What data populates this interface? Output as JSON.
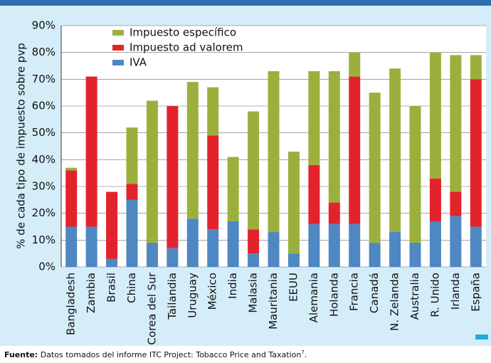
{
  "chart_data": {
    "type": "stacked_bar",
    "y_label": "% de cada tipo de impuesto sobre pvp",
    "categories": [
      "Bangladesh",
      "Zambia",
      "Brasil",
      "China",
      "Corea del Sur",
      "Tailandia",
      "Uruguay",
      "México",
      "India",
      "Malasia",
      "Mauritania",
      "EEUU",
      "Alemania",
      "Holanda",
      "Francia",
      "Canadá",
      "N. Zelanda",
      "Australia",
      "R. Unido",
      "Irlanda",
      "España"
    ],
    "series": [
      {
        "name": "Impuesto específico",
        "color": "#9bb03c",
        "values": [
          1,
          0,
          0,
          21,
          53,
          0,
          51,
          18,
          24,
          44,
          60,
          38,
          35,
          49,
          9,
          56,
          61,
          51,
          47,
          51,
          9
        ]
      },
      {
        "name": "Impuesto ad valorem",
        "color": "#e3232c",
        "values": [
          21,
          56,
          25,
          6,
          0,
          53,
          0,
          35,
          0,
          9,
          0,
          0,
          22,
          8,
          55,
          0,
          0,
          0,
          16,
          9,
          55
        ]
      },
      {
        "name": "IVA",
        "color": "#4f87c2",
        "values": [
          15,
          15,
          3,
          25,
          9,
          7,
          18,
          14,
          17,
          5,
          13,
          5,
          16,
          16,
          16,
          9,
          13,
          9,
          17,
          19,
          15
        ]
      }
    ],
    "ylim": [
      0,
      90
    ],
    "yticks": [
      {
        "value": 0,
        "label": "0%"
      },
      {
        "value": 10,
        "label": "10%"
      },
      {
        "value": 20,
        "label": "20%"
      },
      {
        "value": 30,
        "label": "30%"
      },
      {
        "value": 40,
        "label": "40%"
      },
      {
        "value": 50,
        "label": "50%"
      },
      {
        "value": 60,
        "label": "60%"
      },
      {
        "value": 70,
        "label": "70%"
      },
      {
        "value": 80,
        "label": "80%"
      },
      {
        "value": 90,
        "label": "90%"
      }
    ],
    "grid": true,
    "source_label": "Fuente:",
    "source_text": "Datos tomados del informe ITC Project: Tobacco Price and Taxation",
    "source_note": "7"
  }
}
